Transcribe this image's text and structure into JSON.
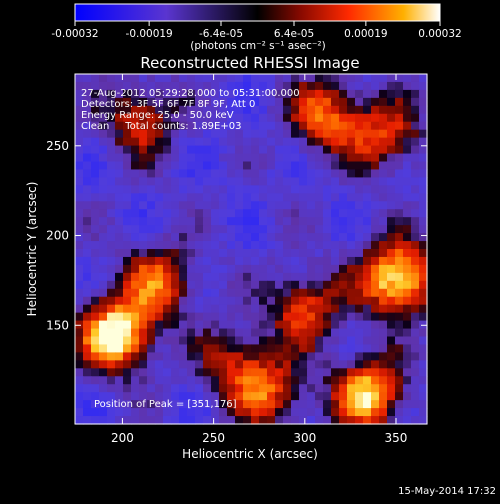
{
  "colorbar": {
    "tick_labels": [
      "-0.00032",
      "-0.00019",
      "-6.4e-05",
      "6.4e-05",
      "0.00019",
      "0.00032"
    ],
    "tick_values": [
      -0.00032,
      -0.00019,
      -6.4e-05,
      6.4e-05,
      0.00019,
      0.00032
    ],
    "range": [
      -0.00032,
      0.00032
    ],
    "units_label": "(photons cm⁻² s⁻¹ asec⁻²)"
  },
  "chart_data": {
    "type": "heatmap",
    "title": "Reconstructed RHESSI Image",
    "xlabel": "Heliocentric X (arcsec)",
    "ylabel": "Heliocentric Y (arcsec)",
    "xlim": [
      174,
      367
    ],
    "ylim": [
      95,
      290
    ],
    "x_ticks": [
      200,
      250,
      300,
      350
    ],
    "y_ticks": [
      150,
      200,
      250
    ],
    "x_tick_labels": [
      "200",
      "250",
      "300",
      "350"
    ],
    "y_tick_labels": [
      "150",
      "200",
      "250"
    ],
    "annotations": {
      "time_range": "27-Aug-2012 05:29:28.000 to 05:31:00.000",
      "detectors": "Detectors: 3F 5F 6F 7F 8F 9F, Att 0",
      "energy_range": "Energy Range: 25.0 - 50.0 keV",
      "method_counts": "Clean     Total counts: 1.89E+03",
      "peak": "Position of Peak = [351,176]"
    },
    "peak_position": [
      351,
      176
    ],
    "total_counts": 1890,
    "energy_range_kev": [
      25.0,
      50.0
    ],
    "sources": [
      {
        "x": 197,
        "y": 145,
        "amplitude": 1.0
      },
      {
        "x": 351,
        "y": 176,
        "amplitude": 1.0
      },
      {
        "x": 335,
        "y": 112,
        "amplitude": 0.85
      },
      {
        "x": 280,
        "y": 112,
        "amplitude": 0.55
      },
      {
        "x": 220,
        "y": 175,
        "amplitude": 0.6
      },
      {
        "x": 300,
        "y": 160,
        "amplitude": 0.6
      },
      {
        "x": 210,
        "y": 265,
        "amplitude": 0.55
      },
      {
        "x": 312,
        "y": 267,
        "amplitude": 0.65
      },
      {
        "x": 345,
        "y": 255,
        "amplitude": 0.55
      },
      {
        "x": 262,
        "y": 130,
        "amplitude": 0.45
      }
    ]
  },
  "footer": {
    "timestamp": "15-May-2014 17:32"
  }
}
